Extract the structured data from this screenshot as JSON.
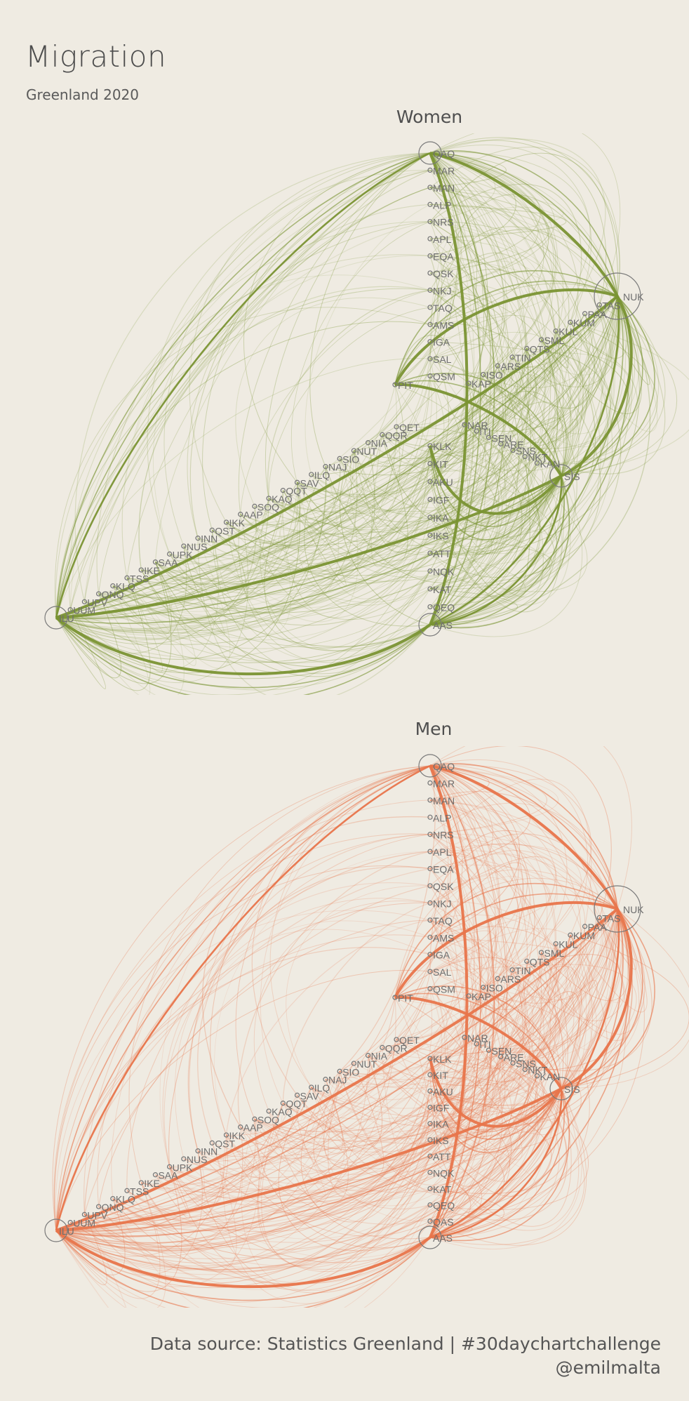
{
  "title": "Migration",
  "subtitle": "Greenland 2020",
  "caption": {
    "line1": "Data source: Statistics Greenland | #30daychartchallenge",
    "line2": "@emilmalta"
  },
  "colors": {
    "background": "#efebe2",
    "women": "#7a9433",
    "men": "#e8754b",
    "node": "#7a7a7a"
  },
  "chart_data": [
    {
      "type": "network",
      "title": "Women",
      "arcs": {
        "north": [
          "QAQ",
          "MAR",
          "MAN",
          "ALP",
          "NRS",
          "APL",
          "EQA",
          "QSK",
          "NKJ",
          "TAQ",
          "AMS",
          "IGA",
          "SAL",
          "QSM",
          "PIT"
        ],
        "west": [
          "NUK",
          "TAS",
          "PAA",
          "KUM",
          "KUL",
          "SML",
          "QTS",
          "TIN",
          "ARS",
          "ISO",
          "KAP"
        ],
        "south": [
          "KLK",
          "KIT",
          "AKU",
          "IGF",
          "IKA",
          "IKS",
          "ATT",
          "NQK",
          "KAT",
          "QEQ",
          "AAS"
        ],
        "east": [
          "ILU",
          "UUM",
          "UPV",
          "QNQ",
          "KLQ",
          "TSS",
          "IKE",
          "SAA",
          "UPK",
          "NUS",
          "INN",
          "QST",
          "IKK",
          "AAP",
          "SOQ",
          "KAQ",
          "QQT",
          "SAV",
          "ILQ",
          "NAJ",
          "SIO",
          "NUT",
          "NIA",
          "QQR",
          "QET"
        ],
        "centre": [
          "NAR",
          "ITI",
          "SEN",
          "ARE",
          "SNS",
          "NKT",
          "KAN",
          "MAN",
          "SIS"
        ]
      },
      "hubs": [
        "QAQ",
        "NUK",
        "SIS",
        "AAS",
        "ILU"
      ],
      "flows": [
        {
          "from": "QAQ",
          "to": "NUK",
          "weight": "high"
        },
        {
          "from": "QAQ",
          "to": "AAS",
          "weight": "high"
        },
        {
          "from": "QAQ",
          "to": "ILU",
          "weight": "medium"
        },
        {
          "from": "NUK",
          "to": "ILU",
          "weight": "high"
        },
        {
          "from": "NUK",
          "to": "SIS",
          "weight": "high"
        },
        {
          "from": "NUK",
          "to": "AAS",
          "weight": "medium"
        },
        {
          "from": "SIS",
          "to": "ILU",
          "weight": "high"
        },
        {
          "from": "SIS",
          "to": "AAS",
          "weight": "medium"
        },
        {
          "from": "AAS",
          "to": "ILU",
          "weight": "high"
        },
        {
          "from": "PIT",
          "to": "SIS",
          "weight": "high"
        },
        {
          "from": "PIT",
          "to": "NUK",
          "weight": "high"
        },
        {
          "from": "KLK",
          "to": "SIS",
          "weight": "high"
        }
      ]
    },
    {
      "type": "network",
      "title": "Men",
      "arcs": {
        "north": [
          "QAQ",
          "MAR",
          "MAN",
          "ALP",
          "NRS",
          "APL",
          "EQA",
          "QSK",
          "NKJ",
          "TAQ",
          "AMS",
          "IGA",
          "SAL",
          "QSM",
          "PIT"
        ],
        "west": [
          "NUK",
          "TAS",
          "PAA",
          "KUM",
          "KUL",
          "SML",
          "QTS",
          "TIN",
          "ARS",
          "ISO",
          "KAP"
        ],
        "south": [
          "KLK",
          "KIT",
          "AKU",
          "IGF",
          "IKA",
          "IKS",
          "ATT",
          "NQK",
          "KAT",
          "QEQ",
          "QAS",
          "AAS"
        ],
        "east": [
          "ILU",
          "UUM",
          "UPV",
          "QNQ",
          "KLQ",
          "TSS",
          "IKE",
          "SAA",
          "UPK",
          "NUS",
          "INN",
          "QST",
          "IKK",
          "AAP",
          "SOQ",
          "KAQ",
          "QQT",
          "SAV",
          "ILQ",
          "NAJ",
          "SIO",
          "NUT",
          "NIA",
          "QQR",
          "QET"
        ],
        "centre": [
          "NAR",
          "ITI",
          "SEN",
          "ARE",
          "SNS",
          "NKT",
          "KAN",
          "MAN",
          "SIS"
        ]
      },
      "hubs": [
        "QAQ",
        "NUK",
        "SIS",
        "AAS",
        "ILU"
      ],
      "flows": [
        {
          "from": "QAQ",
          "to": "NUK",
          "weight": "high"
        },
        {
          "from": "QAQ",
          "to": "AAS",
          "weight": "high"
        },
        {
          "from": "QAQ",
          "to": "ILU",
          "weight": "medium"
        },
        {
          "from": "NUK",
          "to": "ILU",
          "weight": "high"
        },
        {
          "from": "NUK",
          "to": "SIS",
          "weight": "high"
        },
        {
          "from": "NUK",
          "to": "AAS",
          "weight": "medium"
        },
        {
          "from": "SIS",
          "to": "ILU",
          "weight": "high"
        },
        {
          "from": "SIS",
          "to": "AAS",
          "weight": "medium"
        },
        {
          "from": "AAS",
          "to": "ILU",
          "weight": "high"
        },
        {
          "from": "PIT",
          "to": "SIS",
          "weight": "high"
        },
        {
          "from": "PIT",
          "to": "NUK",
          "weight": "high"
        },
        {
          "from": "KLK",
          "to": "SIS",
          "weight": "high"
        }
      ]
    }
  ]
}
